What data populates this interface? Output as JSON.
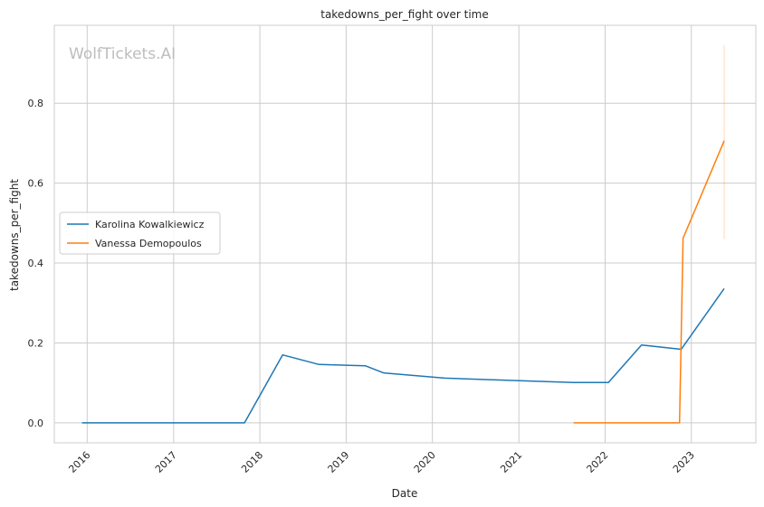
{
  "chart_data": {
    "type": "line",
    "title": "takedowns_per_fight over time",
    "xlabel": "Date",
    "ylabel": "takedowns_per_fight",
    "watermark": "WolfTickets.AI",
    "xlim": [
      "2015-08-15",
      "2023-10-01"
    ],
    "ylim": [
      -0.05,
      0.995
    ],
    "x_ticks": [
      {
        "date": "2016-01-01",
        "label": "2016"
      },
      {
        "date": "2017-01-01",
        "label": "2017"
      },
      {
        "date": "2018-01-01",
        "label": "2018"
      },
      {
        "date": "2019-01-01",
        "label": "2019"
      },
      {
        "date": "2020-01-01",
        "label": "2020"
      },
      {
        "date": "2021-01-01",
        "label": "2021"
      },
      {
        "date": "2022-01-01",
        "label": "2022"
      },
      {
        "date": "2023-01-01",
        "label": "2023"
      }
    ],
    "y_ticks": [
      {
        "value": 0.0,
        "label": "0.0"
      },
      {
        "value": 0.2,
        "label": "0.2"
      },
      {
        "value": 0.4,
        "label": "0.4"
      },
      {
        "value": 0.6,
        "label": "0.6"
      },
      {
        "value": 0.8,
        "label": "0.8"
      }
    ],
    "grid": true,
    "legend_position": "center-left",
    "series": [
      {
        "name": "Karolina Kowalkiewicz",
        "color": "#1f77b4",
        "points": [
          {
            "x": "2015-12-10",
            "y": 0.0
          },
          {
            "x": "2017-10-28",
            "y": 0.0
          },
          {
            "x": "2018-04-07",
            "y": 0.17
          },
          {
            "x": "2018-09-08",
            "y": 0.146
          },
          {
            "x": "2019-03-23",
            "y": 0.143
          },
          {
            "x": "2019-06-08",
            "y": 0.125
          },
          {
            "x": "2020-02-22",
            "y": 0.112
          },
          {
            "x": "2021-08-21",
            "y": 0.101
          },
          {
            "x": "2022-01-15",
            "y": 0.101
          },
          {
            "x": "2022-06-04",
            "y": 0.195
          },
          {
            "x": "2022-11-19",
            "y": 0.184
          },
          {
            "x": "2023-05-20",
            "y": 0.336
          }
        ]
      },
      {
        "name": "Vanessa Demopoulos",
        "color": "#ff7f0e",
        "points": [
          {
            "x": "2021-08-21",
            "y": 0.0
          },
          {
            "x": "2022-11-12",
            "y": 0.0
          },
          {
            "x": "2022-11-27",
            "y": 0.462
          },
          {
            "x": "2023-05-20",
            "y": 0.706
          }
        ],
        "error_bar": {
          "x": "2023-05-20",
          "low": 0.46,
          "high": 0.945
        }
      }
    ]
  }
}
